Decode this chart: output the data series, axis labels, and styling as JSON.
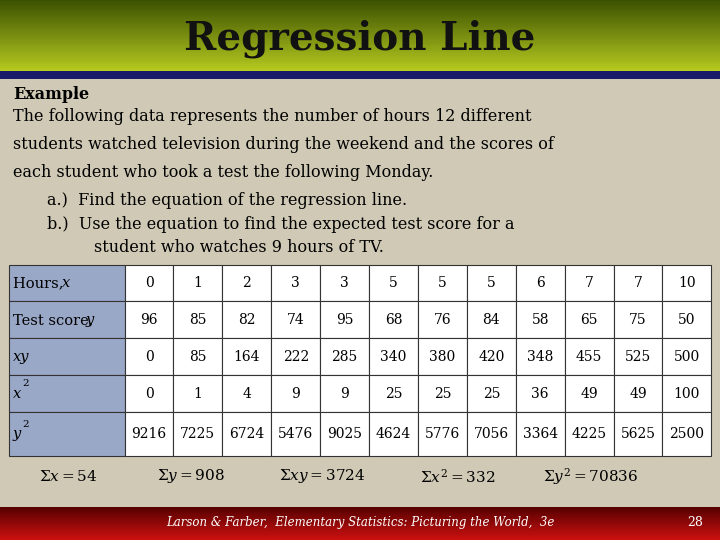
{
  "title": "Regression Line",
  "bg_color": "#cfc9b5",
  "title_bar_mid": "#8aac10",
  "title_bar_dark": "#4a6000",
  "separator_color": "#2a2a7a",
  "footer_bg_top": "#cc0000",
  "footer_bg_bot": "#660000",
  "footer_text_color": "#ffffff",
  "table_label_bg": "#9aa8c8",
  "table_data_bg": "#ffffff",
  "table_border": "#333333",
  "row_labels": [
    "Hours, x",
    "Test score, y",
    "xy",
    "x2",
    "y2"
  ],
  "columns": [
    [
      "0",
      "96",
      "0",
      "0",
      "9216"
    ],
    [
      "1",
      "85",
      "85",
      "1",
      "7225"
    ],
    [
      "2",
      "82",
      "164",
      "4",
      "6724"
    ],
    [
      "3",
      "74",
      "222",
      "9",
      "5476"
    ],
    [
      "3",
      "95",
      "285",
      "9",
      "9025"
    ],
    [
      "5",
      "68",
      "340",
      "25",
      "4624"
    ],
    [
      "5",
      "76",
      "380",
      "25",
      "5776"
    ],
    [
      "5",
      "84",
      "420",
      "25",
      "7056"
    ],
    [
      "6",
      "58",
      "348",
      "36",
      "3364"
    ],
    [
      "7",
      "65",
      "455",
      "49",
      "4225"
    ],
    [
      "7",
      "75",
      "525",
      "49",
      "5625"
    ],
    [
      "10",
      "50",
      "500",
      "100",
      "2500"
    ]
  ],
  "footer_text": "Larson & Farber,  Elementary Statistics: Picturing the World,  3e",
  "footer_page": "28"
}
